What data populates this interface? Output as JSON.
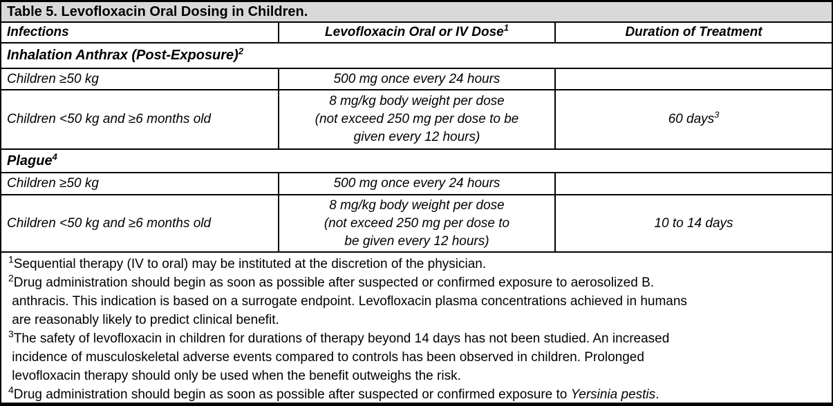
{
  "table": {
    "title": "Table 5. Levofloxacin Oral Dosing in Children.",
    "headers": {
      "infections": "Infections",
      "dose": "Levofloxacin Oral or IV Dose",
      "dose_sup": "1",
      "duration": "Duration of Treatment"
    },
    "anthrax": {
      "section_label": "Inhalation Anthrax (Post-Exposure)",
      "section_sup": "2",
      "row1": {
        "infection": "Children ≥50 kg",
        "dose": "500 mg once every 24 hours",
        "duration": ""
      },
      "row2": {
        "infection": "Children <50 kg and ≥6 months old",
        "dose_lines": [
          "8 mg/kg body weight per dose",
          "(not exceed 250 mg per dose to be",
          "given every 12 hours)"
        ],
        "duration": "60 days",
        "duration_sup": "3"
      }
    },
    "plague": {
      "section_label": "Plague",
      "section_sup": "4",
      "row1": {
        "infection": "Children ≥50 kg",
        "dose": "500 mg once every 24 hours",
        "duration": ""
      },
      "row2": {
        "infection": "Children <50 kg and ≥6 months old",
        "dose_lines": [
          "8 mg/kg body weight per dose",
          "(not exceed 250 mg per dose to",
          "be given every 12 hours)"
        ],
        "duration": "10 to 14 days"
      }
    }
  },
  "footnotes": [
    {
      "sup": "1",
      "lines": [
        "Sequential therapy (IV to oral) may be instituted at the discretion of the physician."
      ]
    },
    {
      "sup": "2",
      "lines": [
        "Drug administration should begin as soon as possible after suspected or confirmed exposure to aerosolized B.",
        " anthracis. This indication is based on a surrogate endpoint. Levofloxacin plasma concentrations achieved in humans",
        " are reasonably likely to predict clinical benefit."
      ]
    },
    {
      "sup": "3",
      "lines": [
        "The safety of levofloxacin in children for durations of therapy beyond 14 days has not been studied. An increased",
        " incidence of musculoskeletal adverse events compared to controls has been observed in children. Prolonged",
        " levofloxacin therapy should only be used when the benefit outweighs the risk."
      ]
    },
    {
      "sup": "4",
      "text": "Drug administration should begin as soon as possible after suspected or confirmed exposure to ",
      "italic": "Yersinia pestis",
      "after": "."
    }
  ],
  "colors": {
    "title_bg": "#d9d9d9",
    "border": "#000000",
    "text": "#000000",
    "background": "#ffffff"
  }
}
